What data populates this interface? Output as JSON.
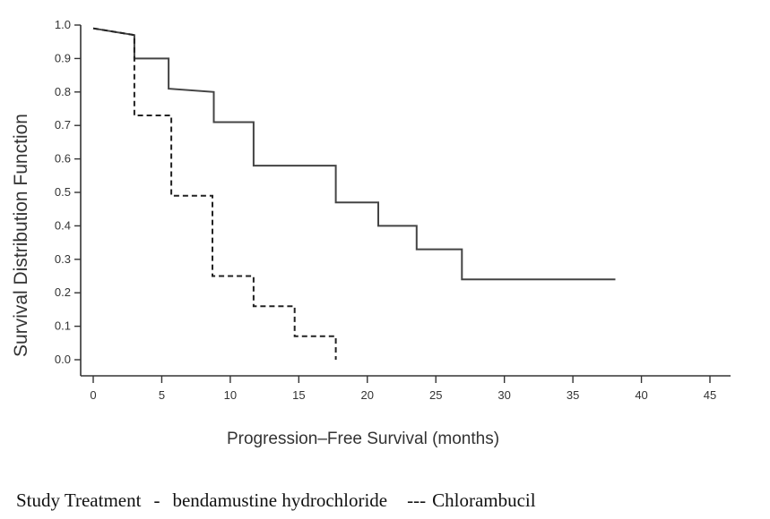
{
  "chart_data": {
    "type": "line",
    "step": true,
    "xlabel": "Progression–Free Survival (months)",
    "ylabel": "Survival Distribution Function",
    "xlim": [
      0,
      45
    ],
    "ylim": [
      0,
      1
    ],
    "x_ticks": [
      0,
      5,
      10,
      15,
      20,
      25,
      30,
      35,
      40,
      45
    ],
    "y_ticks": [
      "1.0",
      "0.9",
      "0.8",
      "0.7",
      "0.6",
      "0.5",
      "0.4",
      "0.3",
      "0.2",
      "0.1",
      "0.0"
    ],
    "grid": false,
    "series": [
      {
        "name": "bendamustine hydrochloride",
        "style": "solid",
        "color": "#444444",
        "points": [
          [
            0,
            0.99
          ],
          [
            3,
            0.97
          ],
          [
            3,
            0.9
          ],
          [
            5.5,
            0.9
          ],
          [
            5.5,
            0.81
          ],
          [
            8.8,
            0.8
          ],
          [
            8.8,
            0.71
          ],
          [
            11.7,
            0.71
          ],
          [
            11.7,
            0.58
          ],
          [
            17.7,
            0.58
          ],
          [
            17.7,
            0.47
          ],
          [
            20.8,
            0.47
          ],
          [
            20.8,
            0.4
          ],
          [
            23.6,
            0.4
          ],
          [
            23.6,
            0.33
          ],
          [
            26.9,
            0.33
          ],
          [
            26.9,
            0.24
          ],
          [
            38.1,
            0.24
          ]
        ]
      },
      {
        "name": "Chlorambucil",
        "style": "dashed",
        "color": "#222222",
        "points": [
          [
            0,
            0.99
          ],
          [
            3,
            0.97
          ],
          [
            3,
            0.73
          ],
          [
            5.7,
            0.73
          ],
          [
            5.7,
            0.49
          ],
          [
            8.7,
            0.49
          ],
          [
            8.7,
            0.25
          ],
          [
            11.7,
            0.25
          ],
          [
            11.7,
            0.16
          ],
          [
            14.7,
            0.16
          ],
          [
            14.7,
            0.07
          ],
          [
            17.7,
            0.07
          ],
          [
            17.7,
            0.0
          ]
        ]
      }
    ],
    "legend": {
      "title": "Study Treatment",
      "entries": [
        {
          "marker": "-",
          "label": "bendamustine hydrochloride"
        },
        {
          "marker": "---",
          "label": "Chlorambucil"
        }
      ],
      "placement": "bottom"
    }
  }
}
